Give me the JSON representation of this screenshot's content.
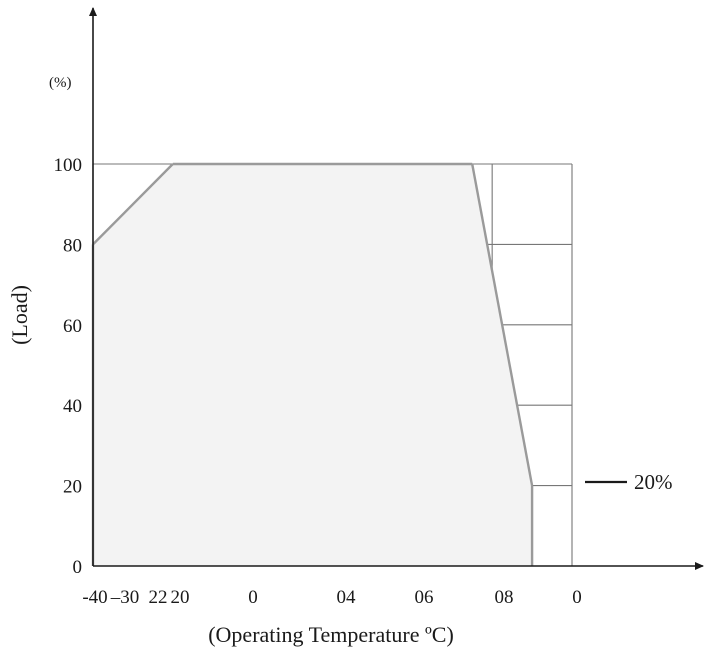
{
  "chart_data": {
    "type": "area",
    "ylabel": "(Load)",
    "y_unit": "(%)",
    "xlabel": "(Operating Temperature ºC)",
    "y_ticks": [
      "0",
      "20",
      "40",
      "60",
      "80",
      "100"
    ],
    "x_tick_labels": [
      "-40",
      "–30",
      "22",
      "20",
      "0",
      "04",
      "06",
      "08",
      "0"
    ],
    "x": [
      -40,
      -20,
      55,
      70,
      70
    ],
    "y": [
      80,
      100,
      100,
      20,
      0
    ],
    "xlim": [
      -40,
      80
    ],
    "ylim": [
      0,
      100
    ],
    "grid": true,
    "annotation": "20%",
    "colors": {
      "fill": "#f3f3f3",
      "outline": "#9a9a9a",
      "grid": "#777777",
      "axis": "#1a1a1a"
    }
  }
}
